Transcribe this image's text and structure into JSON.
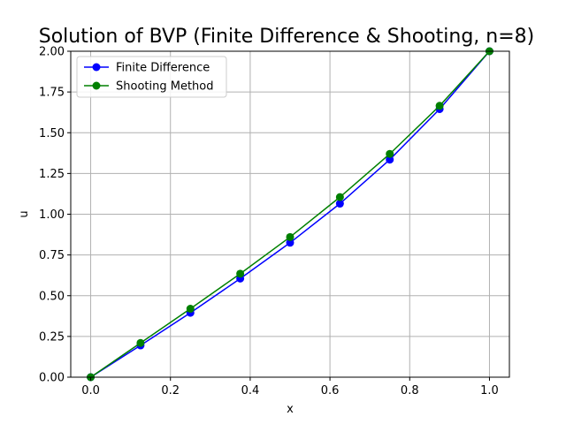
{
  "chart_data": {
    "type": "line",
    "title": "Solution of BVP (Finite Difference & Shooting, n=8)",
    "xlabel": "x",
    "ylabel": "u",
    "xlim": [
      -0.05,
      1.05
    ],
    "ylim": [
      0.0,
      2.0
    ],
    "x_ticks": [
      0.0,
      0.2,
      0.4,
      0.6,
      0.8,
      1.0
    ],
    "x_tick_labels": [
      "0.0",
      "0.2",
      "0.4",
      "0.6",
      "0.8",
      "1.0"
    ],
    "y_ticks": [
      0.0,
      0.25,
      0.5,
      0.75,
      1.0,
      1.25,
      1.5,
      1.75,
      2.0
    ],
    "y_tick_labels": [
      "0.00",
      "0.25",
      "0.50",
      "0.75",
      "1.00",
      "1.25",
      "1.50",
      "1.75",
      "2.00"
    ],
    "grid": true,
    "legend_position": "top-left",
    "x": [
      0.0,
      0.125,
      0.25,
      0.375,
      0.5,
      0.625,
      0.75,
      0.875,
      1.0
    ],
    "series": [
      {
        "name": "Finite Difference",
        "color": "#0000ff",
        "marker": "circle",
        "values": [
          0.0,
          0.195,
          0.395,
          0.605,
          0.825,
          1.065,
          1.335,
          1.645,
          2.0
        ]
      },
      {
        "name": "Shooting Method",
        "color": "#008000",
        "marker": "circle",
        "values": [
          0.0,
          0.21,
          0.42,
          0.635,
          0.86,
          1.105,
          1.37,
          1.665,
          2.0
        ]
      }
    ]
  }
}
